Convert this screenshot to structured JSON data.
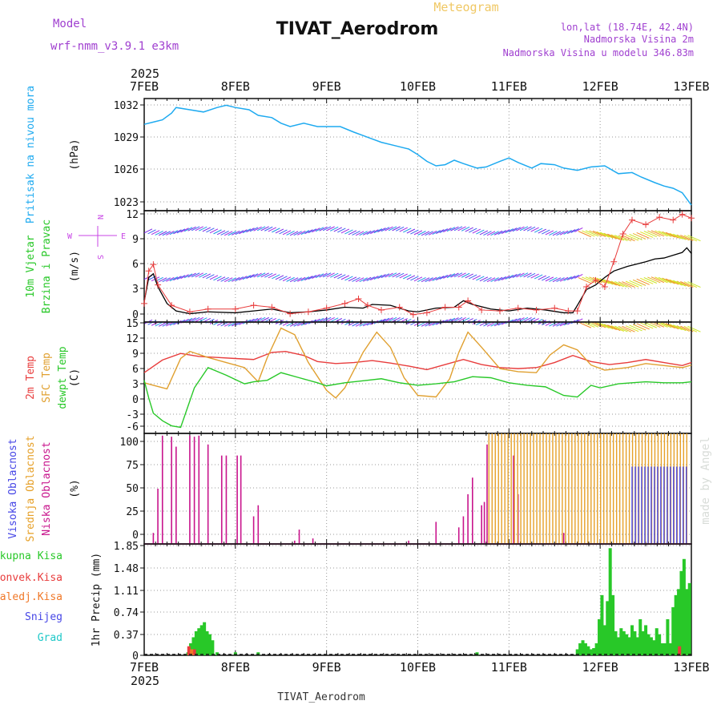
{
  "header": {
    "meteogram": "Meteogram",
    "model_label": "Model",
    "model_name": "wrf-nmm_v3.9.1 e3km",
    "station_title": "TIVAT_Aerodrom",
    "lonlat": "lon,lat (18.74E, 42.4N)",
    "elevation": "Nadmorska Visina 2m",
    "model_elevation": "Nadmorska Visina u modelu 346.83m",
    "year_top": "2025",
    "year_bottom": "2025",
    "footer_station": "TIVAT_Aerodrom",
    "credit": "made by Angel"
  },
  "colors": {
    "pressure": "#1eaaf0",
    "temp2m": "#e83c3c",
    "sfc": "#e0a030",
    "dewpt": "#28c828",
    "high_cloud": "#4646e6",
    "mid_cloud": "#e6a028",
    "low_cloud": "#c8148c",
    "total_precip": "#28c828",
    "conv_precip": "#e83c3c",
    "freezing_precip": "#f07828",
    "snow": "#4646e6",
    "hail": "#1ec8c8",
    "gust": "#000000",
    "wind_label": "#28c828",
    "dir_label": "#c846e6",
    "model_text": "#a040d0"
  },
  "chart_data": {
    "x_dates": [
      "7FEB",
      "8FEB",
      "9FEB",
      "10FEB",
      "11FEB",
      "12FEB",
      "13FEB"
    ],
    "x_start_day": 7,
    "x_end_day": 13,
    "panels": [
      {
        "id": "pressure",
        "type": "line",
        "ylabel": "(hPa)",
        "side_labels": [
          "Pritisak na nivou mora"
        ],
        "yticks": [
          "1032",
          "1029",
          "1026",
          "1023"
        ],
        "ylim": [
          1022.5,
          1032.5
        ],
        "series": [
          {
            "name": "Pritisak na nivou mora",
            "x": [
              7.0,
              7.1,
              7.2,
              7.3,
              7.35,
              7.5,
              7.65,
              7.8,
              7.9,
              8.0,
              8.15,
              8.25,
              8.4,
              8.5,
              8.6,
              8.75,
              8.9,
              9.0,
              9.15,
              9.3,
              9.4,
              9.5,
              9.6,
              9.75,
              9.9,
              10.0,
              10.1,
              10.2,
              10.3,
              10.4,
              10.5,
              10.65,
              10.75,
              10.9,
              11.0,
              11.1,
              11.25,
              11.35,
              11.5,
              11.6,
              11.75,
              11.9,
              12.05,
              12.2,
              12.35,
              12.45,
              12.6,
              12.7,
              12.8,
              12.9,
              13.0
            ],
            "values": [
              1030.2,
              1030.4,
              1030.6,
              1031.2,
              1031.7,
              1031.5,
              1031.3,
              1031.7,
              1031.9,
              1031.7,
              1031.5,
              1031.0,
              1030.8,
              1030.3,
              1030.0,
              1030.3,
              1030.0,
              1030.0,
              1030.0,
              1029.5,
              1029.2,
              1028.9,
              1028.6,
              1028.3,
              1028.0,
              1027.5,
              1026.9,
              1026.5,
              1026.6,
              1027.0,
              1026.7,
              1026.3,
              1026.4,
              1026.9,
              1027.2,
              1026.8,
              1026.3,
              1026.7,
              1026.6,
              1026.3,
              1026.1,
              1026.4,
              1026.5,
              1025.8,
              1025.9,
              1025.5,
              1025.0,
              1024.7,
              1024.5,
              1024.1,
              1023.0
            ]
          }
        ]
      },
      {
        "id": "wind",
        "type": "line",
        "ylabel": "(m/s)",
        "side_labels": [
          "10m Vjetar",
          "Brzina i Pravac"
        ],
        "direction_key": [
          "N",
          "E",
          "S",
          "W"
        ],
        "yticks": [
          "12",
          "9",
          "6",
          "3",
          "0"
        ],
        "ylim": [
          0,
          12
        ],
        "series": [
          {
            "name": "10m Vjetar (udari)",
            "x": [
              7.0,
              7.05,
              7.1,
              7.15,
              7.25,
              7.35,
              7.5,
              7.7,
              8.0,
              8.2,
              8.4,
              8.6,
              8.8,
              9.0,
              9.2,
              9.4,
              9.5,
              9.7,
              9.9,
              10.0,
              10.2,
              10.4,
              10.5,
              10.6,
              10.8,
              11.0,
              11.2,
              11.4,
              11.6,
              11.7,
              11.75,
              11.85,
              11.95,
              12.05,
              12.15,
              12.3,
              12.5,
              12.6,
              12.7,
              12.8,
              12.9,
              12.95,
              13.0
            ],
            "values": [
              2.2,
              4.8,
              5.2,
              3.8,
              2.0,
              1.2,
              0.9,
              1.1,
              1.0,
              1.2,
              1.4,
              1.0,
              1.1,
              1.3,
              1.6,
              1.5,
              1.9,
              1.8,
              1.2,
              1.1,
              1.5,
              1.6,
              2.3,
              1.9,
              1.4,
              1.2,
              1.5,
              1.3,
              1.0,
              1.0,
              1.8,
              3.5,
              4.0,
              4.8,
              5.5,
              6.0,
              6.5,
              6.8,
              6.9,
              7.2,
              7.5,
              8.0,
              7.4
            ]
          },
          {
            "name": "Brzina (crveni krstici)",
            "x": [
              7.0,
              7.05,
              7.1,
              7.15,
              7.3,
              7.5,
              7.7,
              8.0,
              8.2,
              8.4,
              8.6,
              8.8,
              9.0,
              9.2,
              9.35,
              9.45,
              9.6,
              9.8,
              9.95,
              10.1,
              10.3,
              10.45,
              10.55,
              10.7,
              10.9,
              11.1,
              11.3,
              11.5,
              11.65,
              11.75,
              11.85,
              11.95,
              12.05,
              12.15,
              12.25,
              12.35,
              12.5,
              12.65,
              12.8,
              12.9,
              13.0
            ],
            "values": [
              2.0,
              5.5,
              6.2,
              4.0,
              1.8,
              1.1,
              1.4,
              1.4,
              1.8,
              1.6,
              0.9,
              1.1,
              1.5,
              2.0,
              2.5,
              1.8,
              1.3,
              1.6,
              0.8,
              1.0,
              1.6,
              1.6,
              2.3,
              1.3,
              1.2,
              1.5,
              1.3,
              1.5,
              1.2,
              1.2,
              3.8,
              4.5,
              3.8,
              6.5,
              9.5,
              11.0,
              10.5,
              11.3,
              11.0,
              11.6,
              11.2
            ]
          }
        ]
      },
      {
        "id": "temperature",
        "type": "line",
        "ylabel": "(C)",
        "side_labels": [
          "2m Temp",
          "SFC Temp",
          "dewpt Temp"
        ],
        "yticks": [
          "15",
          "12",
          "9",
          "6",
          "3",
          "0",
          "-3",
          "-6"
        ],
        "ylim": [
          -7,
          15
        ],
        "series": [
          {
            "name": "2m Temp",
            "x": [
              7.0,
              7.2,
              7.4,
              7.6,
              7.8,
              8.0,
              8.2,
              8.4,
              8.55,
              8.75,
              8.9,
              9.1,
              9.3,
              9.5,
              9.7,
              9.9,
              10.1,
              10.3,
              10.5,
              10.7,
              10.9,
              11.1,
              11.3,
              11.5,
              11.7,
              11.9,
              12.1,
              12.3,
              12.5,
              12.7,
              12.9,
              13.0
            ],
            "values": [
              5.0,
              7.5,
              8.8,
              8.2,
              8.0,
              7.8,
              7.6,
              9.0,
              9.2,
              8.4,
              7.2,
              6.8,
              7.0,
              7.4,
              6.9,
              6.3,
              5.6,
              6.6,
              7.6,
              6.6,
              6.0,
              5.8,
              6.0,
              7.0,
              8.4,
              7.2,
              6.6,
              7.0,
              7.6,
              7.0,
              6.4,
              7.0
            ]
          },
          {
            "name": "SFC Temp",
            "x": [
              7.0,
              7.1,
              7.25,
              7.4,
              7.5,
              7.7,
              7.9,
              8.1,
              8.25,
              8.35,
              8.5,
              8.65,
              8.8,
              9.0,
              9.1,
              9.2,
              9.4,
              9.55,
              9.7,
              9.85,
              10.0,
              10.2,
              10.35,
              10.45,
              10.55,
              10.7,
              10.9,
              11.1,
              11.3,
              11.45,
              11.6,
              11.75,
              11.9,
              12.05,
              12.3,
              12.5,
              12.7,
              12.9,
              13.0
            ],
            "values": [
              3.0,
              2.5,
              1.8,
              7.8,
              9.2,
              8.0,
              7.0,
              6.0,
              3.2,
              8.0,
              13.8,
              12.5,
              7.0,
              1.5,
              0.0,
              2.0,
              9.0,
              13.0,
              10.0,
              4.0,
              0.5,
              0.2,
              3.8,
              9.0,
              13.0,
              10.0,
              5.8,
              5.2,
              5.0,
              8.5,
              10.5,
              9.5,
              6.5,
              5.5,
              6.0,
              6.8,
              6.4,
              6.0,
              6.5
            ]
          },
          {
            "name": "dewpt Temp",
            "x": [
              7.0,
              7.05,
              7.1,
              7.2,
              7.3,
              7.4,
              7.55,
              7.7,
              7.9,
              8.1,
              8.2,
              8.35,
              8.5,
              8.7,
              8.9,
              9.0,
              9.2,
              9.4,
              9.6,
              9.8,
              10.0,
              10.2,
              10.4,
              10.6,
              10.8,
              11.0,
              11.2,
              11.4,
              11.6,
              11.75,
              11.9,
              12.0,
              12.2,
              12.5,
              12.7,
              12.9,
              13.0
            ],
            "values": [
              3.5,
              0.0,
              -3.0,
              -4.5,
              -5.5,
              -5.8,
              2.0,
              6.0,
              4.5,
              2.8,
              3.2,
              3.5,
              5.0,
              4.0,
              3.0,
              2.4,
              3.0,
              3.4,
              3.8,
              3.0,
              2.5,
              2.8,
              3.2,
              4.2,
              4.0,
              3.0,
              2.5,
              2.2,
              0.5,
              0.2,
              2.5,
              2.0,
              2.8,
              3.2,
              3.0,
              3.0,
              3.2
            ]
          }
        ]
      },
      {
        "id": "clouds",
        "type": "bar",
        "ylabel": "(%)",
        "side_labels": [
          "Visoka Oblacnost",
          "Srednja Oblacnost",
          "Niska Oblacnost"
        ],
        "yticks": [
          "100",
          "75",
          "50",
          "25",
          "0"
        ],
        "ylim": [
          0,
          100
        ],
        "series": [
          {
            "name": "Niska Oblacnost",
            "x": [
              7.1,
              7.15,
              7.2,
              7.3,
              7.35,
              7.5,
              7.55,
              7.6,
              7.7,
              7.85,
              7.9,
              8.02,
              8.06,
              8.2,
              8.25,
              8.65,
              8.7,
              8.85,
              9.9,
              10.2,
              10.45,
              10.5,
              10.55,
              10.6,
              10.7,
              10.73,
              10.76,
              11.05,
              11.1,
              11.6
            ],
            "values": [
              10,
              50,
              98,
              97,
              88,
              98,
              97,
              98,
              90,
              80,
              80,
              80,
              80,
              25,
              35,
              3,
              13,
              5,
              3,
              20,
              15,
              25,
              45,
              60,
              35,
              38,
              90,
              80,
              45,
              10
            ]
          },
          {
            "name": "Srednja Oblacnost",
            "x_start": 10.78,
            "x_end": 12.98,
            "x_step": 0.035,
            "value": 100
          },
          {
            "name": "Visoka Oblacnost",
            "x_start": 12.35,
            "x_end": 12.98,
            "x_step": 0.035,
            "value": 70
          }
        ]
      },
      {
        "id": "precip",
        "type": "bar",
        "ylabel": "1hr Precip (mm)",
        "side_labels": [
          "Ukupna Kisa",
          "Konvek.Kisa",
          "Zaledj.Kisa",
          "Snijeg",
          "Grad"
        ],
        "yticks": [
          "1.85",
          "1.48",
          "1.11",
          "0.74",
          "0.37",
          "0"
        ],
        "ylim": [
          0,
          1.85
        ],
        "series": [
          {
            "name": "Ukupna Kisa",
            "x": [
              7.48,
              7.51,
              7.54,
              7.57,
              7.6,
              7.63,
              7.66,
              7.69,
              7.72,
              7.75,
              7.8,
              8.0,
              8.25,
              10.65,
              11.75,
              11.78,
              11.81,
              11.84,
              11.87,
              11.9,
              11.93,
              11.96,
              11.99,
              12.02,
              12.05,
              12.08,
              12.11,
              12.14,
              12.17,
              12.2,
              12.23,
              12.26,
              12.29,
              12.32,
              12.35,
              12.38,
              12.41,
              12.44,
              12.47,
              12.5,
              12.53,
              12.56,
              12.59,
              12.62,
              12.65,
              12.68,
              12.71,
              12.74,
              12.77,
              12.8,
              12.83,
              12.86,
              12.89,
              12.92,
              12.95,
              12.98
            ],
            "values": [
              0.05,
              0.2,
              0.3,
              0.4,
              0.45,
              0.5,
              0.55,
              0.4,
              0.35,
              0.25,
              0.05,
              0.05,
              0.05,
              0.05,
              0.1,
              0.2,
              0.25,
              0.2,
              0.15,
              0.1,
              0.12,
              0.2,
              0.6,
              1.0,
              0.5,
              0.9,
              1.78,
              1.0,
              0.4,
              0.3,
              0.45,
              0.4,
              0.35,
              0.3,
              0.5,
              0.4,
              0.3,
              0.6,
              0.4,
              0.5,
              0.35,
              0.3,
              0.25,
              0.45,
              0.35,
              0.2,
              0.2,
              0.6,
              0.2,
              0.8,
              1.0,
              1.1,
              1.4,
              1.6,
              1.1,
              1.2
            ]
          },
          {
            "name": "Konvek.Kisa",
            "x": [
              7.49,
              7.55,
              12.87
            ],
            "values": [
              0.15,
              0.1,
              0.15
            ]
          },
          {
            "name": "Zaledj.Kisa",
            "x": [
              7.52
            ],
            "values": [
              0.1
            ]
          }
        ]
      }
    ]
  }
}
